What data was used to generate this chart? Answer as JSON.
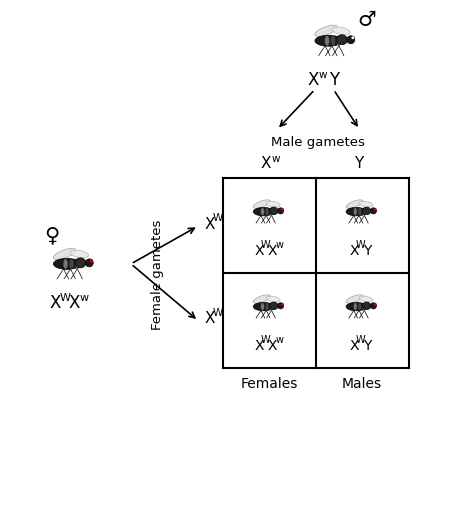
{
  "bg_color": "#ffffff",
  "figsize": [
    4.74,
    5.06
  ],
  "dpi": 100,
  "male_symbol": "♂",
  "female_symbol": "♀",
  "male_gametes_label": "Male gametes",
  "female_gametes_label": "Female gametes",
  "bottom_labels": [
    "Females",
    "Males"
  ],
  "grid_color": "#000000",
  "text_color": "#000000",
  "arrow_color": "#000000",
  "gx0": 4.7,
  "gx1": 6.67,
  "gx2": 8.64,
  "gy0": 6.85,
  "gy1": 4.85,
  "gy2": 2.85
}
